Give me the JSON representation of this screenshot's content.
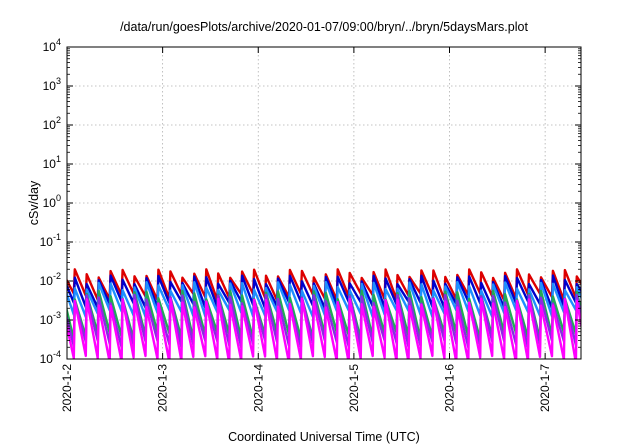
{
  "chart_data": {
    "type": "line",
    "title": "/data/run/goesPlots/archive/2020-01-07/09:00/bryn/../bryn/5daysMars.plot",
    "xlabel": "Coordinated Universal Time (UTC)",
    "ylabel": "cSv/day",
    "yscale": "log",
    "ylim": [
      0.0001,
      10000
    ],
    "y_ticks": [
      {
        "value": 0.0001,
        "base": "10",
        "exp": "-4"
      },
      {
        "value": 0.001,
        "base": "10",
        "exp": "-3"
      },
      {
        "value": 0.01,
        "base": "10",
        "exp": "-2"
      },
      {
        "value": 0.1,
        "base": "10",
        "exp": "-1"
      },
      {
        "value": 1,
        "base": "10",
        "exp": "0"
      },
      {
        "value": 10,
        "base": "10",
        "exp": "1"
      },
      {
        "value": 100,
        "base": "10",
        "exp": "2"
      },
      {
        "value": 1000,
        "base": "10",
        "exp": "3"
      },
      {
        "value": 10000,
        "base": "10",
        "exp": "4"
      }
    ],
    "xlim": [
      "2020-01-02",
      "2020-01-07 09:00"
    ],
    "x_ticks": [
      {
        "value": "2020-01-02",
        "label": "2020-1-2"
      },
      {
        "value": "2020-01-03",
        "label": "2020-1-3"
      },
      {
        "value": "2020-01-04",
        "label": "2020-1-4"
      },
      {
        "value": "2020-01-05",
        "label": "2020-1-5"
      },
      {
        "value": "2020-01-06",
        "label": "2020-1-6"
      },
      {
        "value": "2020-01-07",
        "label": "2020-1-7"
      }
    ],
    "grid": true,
    "sawtooth_period_hours": 3.0,
    "series": [
      {
        "color": "#dd0000",
        "peak": 0.016,
        "trough": 0.004
      },
      {
        "color": "#0000cc",
        "peak": 0.011,
        "trough": 0.0025
      },
      {
        "color": "#1e90ff",
        "peak": 0.0075,
        "trough": 0.0015
      },
      {
        "color": "#22aa55",
        "peak": 0.0045,
        "trough": 0.0004
      },
      {
        "color": "#8a2be2",
        "peak": 0.0035,
        "trough": 0.00025
      },
      {
        "color": "#ff00ff",
        "peak": 0.0028,
        "trough": 0.0001
      }
    ]
  }
}
